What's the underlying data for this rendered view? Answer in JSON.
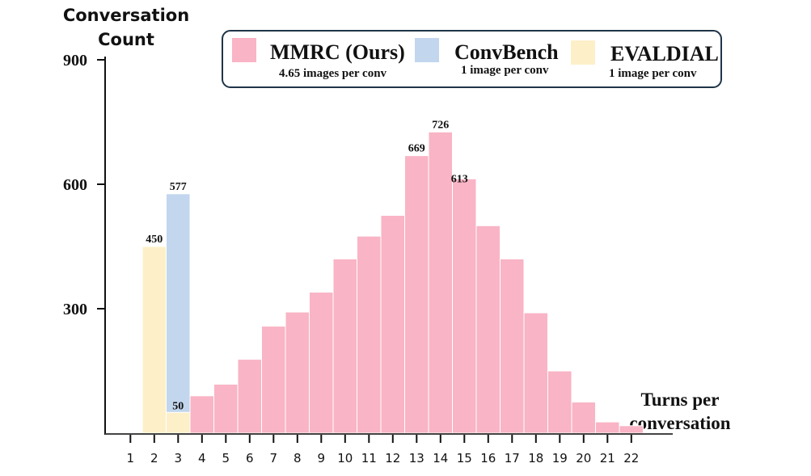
{
  "chart_data": {
    "type": "bar",
    "ylabel": "Conversation Count",
    "xlabel": "Turns per conversation",
    "ylim": [
      0,
      900
    ],
    "yticks": [
      300,
      600,
      900
    ],
    "categories": [
      "1",
      "2",
      "3",
      "4",
      "5",
      "6",
      "7",
      "8",
      "9",
      "10",
      "11",
      "12",
      "13",
      "14",
      "15",
      "16",
      "17",
      "18",
      "19",
      "20",
      "21",
      "22"
    ],
    "legend_position": "top-right",
    "series": [
      {
        "name": "MMRC (Ours)",
        "note": "4.65 images per conv",
        "color": "#f9b4c5",
        "points": [
          {
            "x": "4",
            "y": 90
          },
          {
            "x": "5",
            "y": 118
          },
          {
            "x": "6",
            "y": 178
          },
          {
            "x": "7",
            "y": 258
          },
          {
            "x": "8",
            "y": 292
          },
          {
            "x": "9",
            "y": 340
          },
          {
            "x": "10",
            "y": 420
          },
          {
            "x": "11",
            "y": 475
          },
          {
            "x": "12",
            "y": 525
          },
          {
            "x": "13",
            "y": 669,
            "label": "669"
          },
          {
            "x": "14",
            "y": 726,
            "label": "726"
          },
          {
            "x": "15",
            "y": 613,
            "label": "613"
          },
          {
            "x": "16",
            "y": 500
          },
          {
            "x": "17",
            "y": 420
          },
          {
            "x": "18",
            "y": 290
          },
          {
            "x": "19",
            "y": 150
          },
          {
            "x": "20",
            "y": 75
          },
          {
            "x": "21",
            "y": 27
          },
          {
            "x": "22",
            "y": 18
          }
        ]
      },
      {
        "name": "ConvBench",
        "note": "1 image per conv",
        "color": "#c2d6ee",
        "points": [
          {
            "x": "3",
            "y": 577,
            "label": "577"
          }
        ]
      },
      {
        "name": "EVALDIAL",
        "note": "1 image per conv",
        "color": "#fdf0c8",
        "points": [
          {
            "x": "2",
            "y": 450,
            "label": "450"
          },
          {
            "x": "3",
            "y": 50,
            "label": "50"
          }
        ]
      }
    ]
  }
}
